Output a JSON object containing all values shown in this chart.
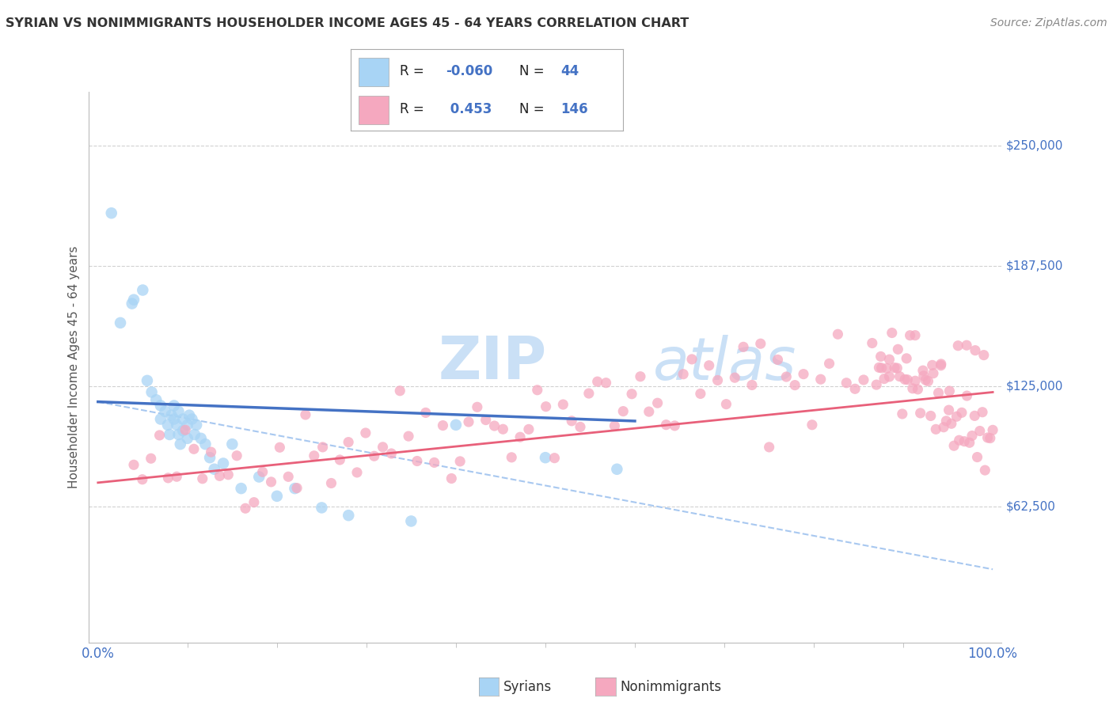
{
  "title": "SYRIAN VS NONIMMIGRANTS HOUSEHOLDER INCOME AGES 45 - 64 YEARS CORRELATION CHART",
  "source": "Source: ZipAtlas.com",
  "ylabel": "Householder Income Ages 45 - 64 years",
  "yticks": [
    0,
    62500,
    125000,
    187500,
    250000
  ],
  "ytick_labels": [
    "",
    "$62,500",
    "$125,000",
    "$187,500",
    "$250,000"
  ],
  "xtick_labels": [
    "0.0%",
    "100.0%"
  ],
  "legend_r1": "-0.060",
  "legend_n1": "44",
  "legend_r2": "0.453",
  "legend_n2": "146",
  "syrian_color": "#a8d4f5",
  "nonimmigrant_color": "#f5a8bf",
  "blue_line_color": "#4472c4",
  "pink_line_color": "#e8607a",
  "dashed_line_color": "#a8c8f0",
  "watermark_color": "#c5ddf5",
  "background_color": "#ffffff",
  "grid_color": "#cccccc",
  "title_color": "#333333",
  "ytick_color": "#4472c4",
  "blue_r_color": "#4472c4",
  "legend_text_color": "#222222",
  "note_color": "#888888",
  "syrian_seed": 7,
  "nonimmigrant_seed": 42
}
